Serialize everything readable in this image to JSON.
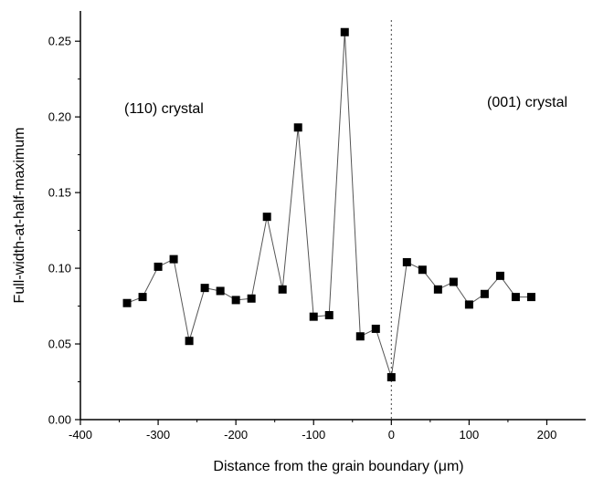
{
  "chart_data": {
    "type": "line",
    "xlabel": "Distance from the grain boundary (μm)",
    "ylabel": "Full-width-at-half-maximum",
    "xlim": [
      -400,
      250
    ],
    "ylim": [
      0.0,
      0.27
    ],
    "x_ticks": [
      -400,
      -300,
      -200,
      -100,
      0,
      100,
      200
    ],
    "x_tick_labels": [
      "-400",
      "-300",
      "-200",
      "-100",
      "0",
      "100",
      "200"
    ],
    "y_ticks": [
      0.0,
      0.05,
      0.1,
      0.15,
      0.2,
      0.25
    ],
    "y_tick_labels": [
      "0.00",
      "0.05",
      "0.10",
      "0.15",
      "0.20",
      "0.25"
    ],
    "grid": false,
    "reference_line": {
      "x": 0,
      "style": "dotted"
    },
    "annotations": [
      {
        "text": "(110) crystal"
      },
      {
        "text": "(001) crystal"
      }
    ],
    "series": [
      {
        "marker": "square",
        "color": "#000000",
        "x": [
          -340,
          -320,
          -300,
          -280,
          -260,
          -240,
          -220,
          -200,
          -180,
          -160,
          -140,
          -120,
          -100,
          -80,
          -60,
          -40,
          -20,
          0,
          20,
          40,
          60,
          80,
          100,
          120,
          140,
          160,
          180
        ],
        "y": [
          0.077,
          0.081,
          0.101,
          0.106,
          0.052,
          0.087,
          0.085,
          0.079,
          0.08,
          0.134,
          0.086,
          0.193,
          0.068,
          0.069,
          0.256,
          0.055,
          0.06,
          0.028,
          0.104,
          0.099,
          0.086,
          0.091,
          0.076,
          0.083,
          0.095,
          0.081,
          0.081
        ]
      }
    ]
  }
}
